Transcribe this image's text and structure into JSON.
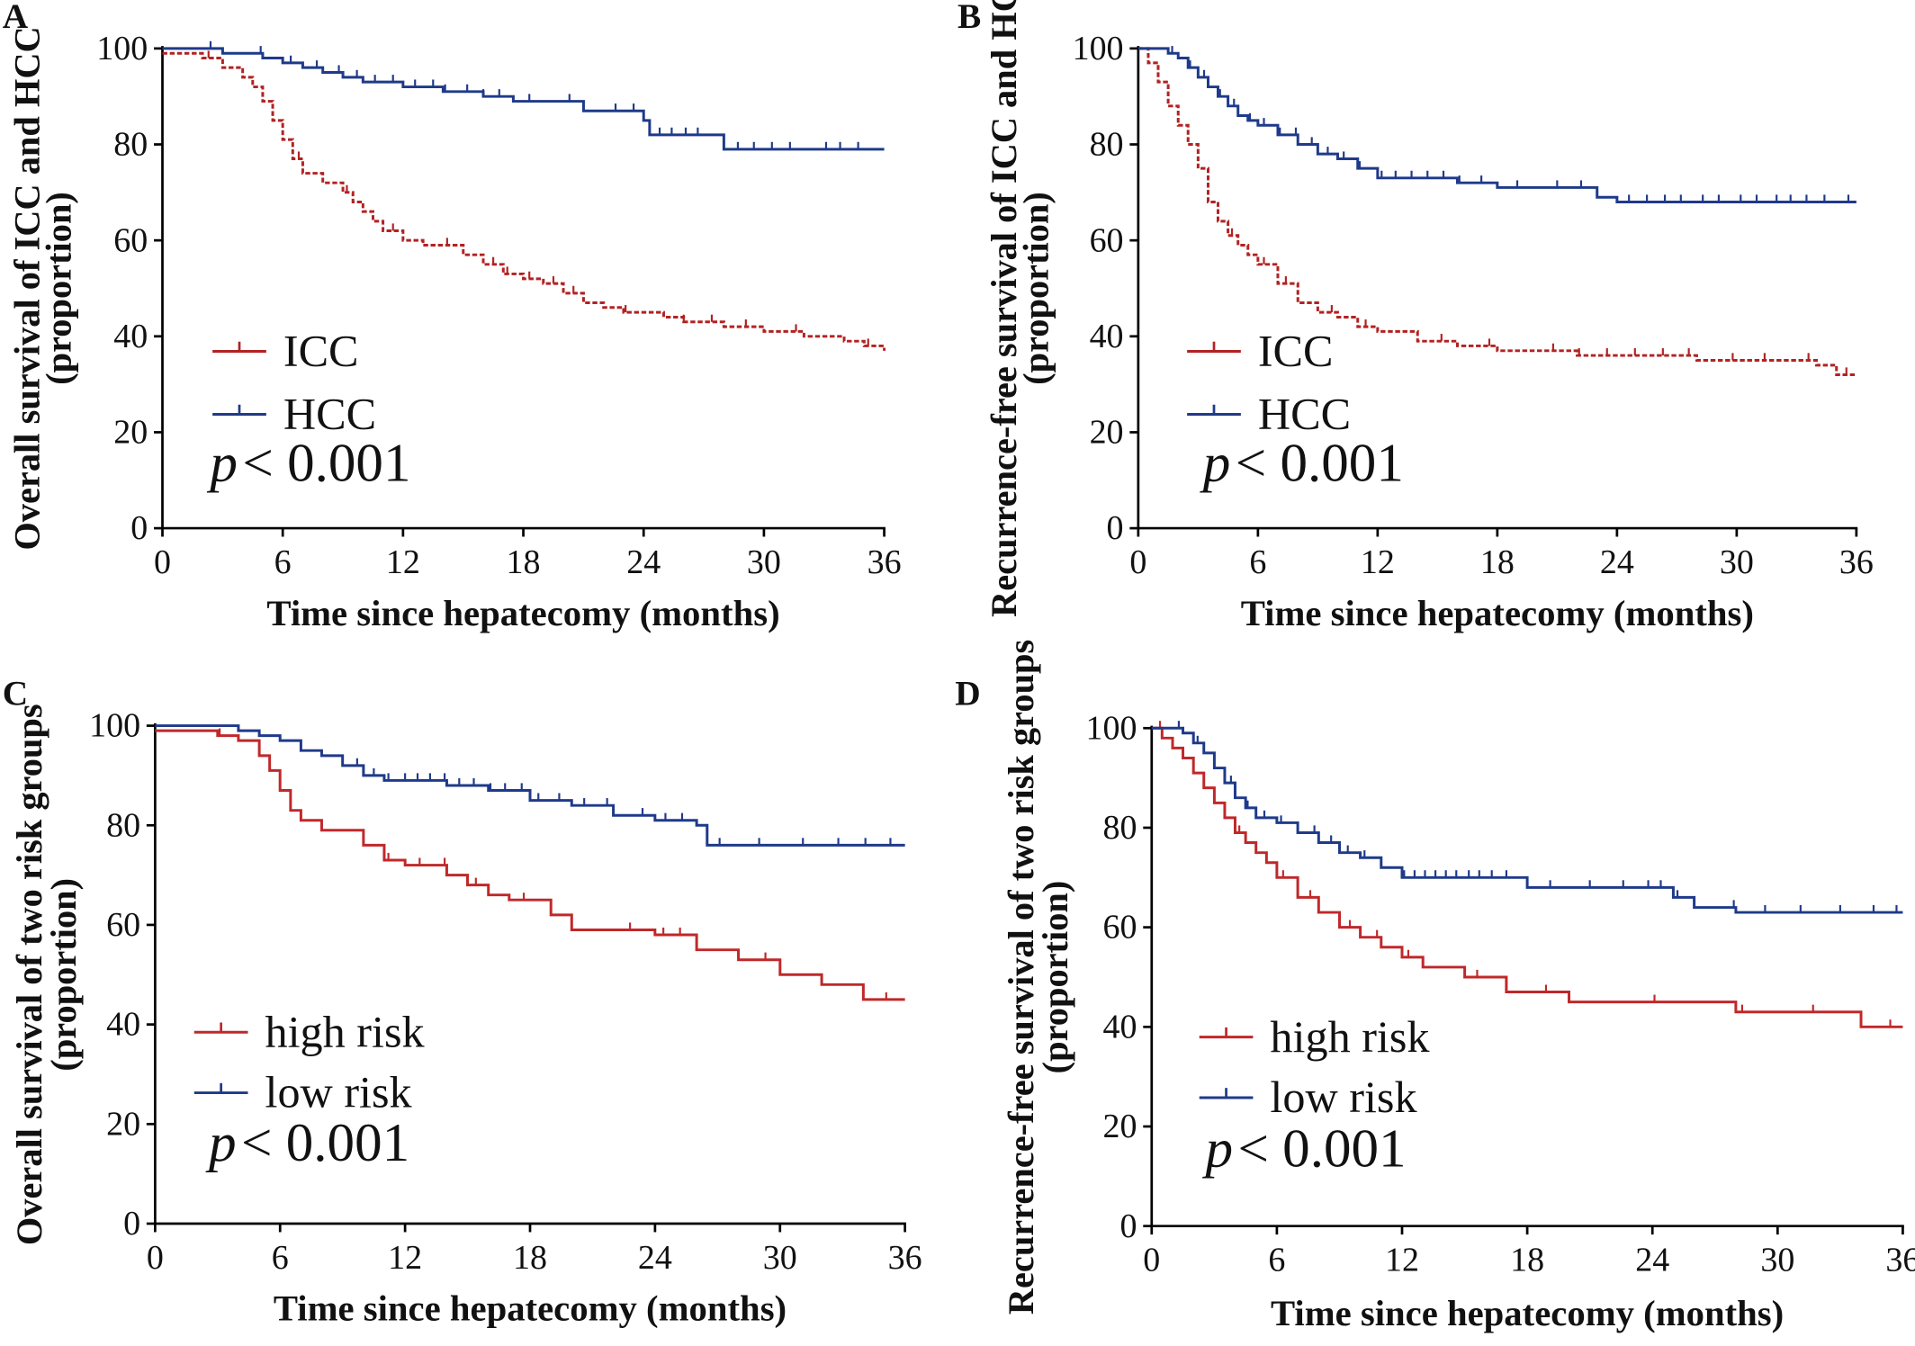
{
  "chart_data": [
    {
      "panel": "A",
      "type": "line",
      "style": "kaplan-meier step curves with censor ticks",
      "xlabel": "Time since hepatecomy (months)",
      "ylabel": "Overall survival of ICC and HCC",
      "ylabel2": "(proportion)",
      "xticks": [
        0,
        6,
        12,
        18,
        24,
        30,
        36
      ],
      "yticks": [
        0,
        20,
        40,
        60,
        80,
        100
      ],
      "xlim": [
        0,
        36
      ],
      "ylim": [
        0,
        100
      ],
      "grid": false,
      "legend_position": "lower-left",
      "annotation": {
        "p": "p",
        "rest": "< 0.001"
      },
      "series": [
        {
          "name": "ICC",
          "color": "#b22222",
          "dash": "dashed",
          "x": [
            0,
            2,
            3,
            4,
            4.5,
            5,
            5.5,
            6,
            6.5,
            7,
            8,
            9,
            9.5,
            10,
            10.5,
            11,
            12,
            13,
            14,
            15,
            16,
            17,
            18,
            19,
            20,
            21,
            22,
            23,
            25,
            26,
            28,
            30,
            32,
            34,
            35,
            36
          ],
          "y": [
            99,
            98,
            96,
            94,
            92,
            89,
            85,
            81,
            77,
            74,
            72,
            70,
            68,
            66,
            64,
            62,
            60,
            59,
            59,
            57,
            55,
            53,
            52,
            51,
            49,
            47,
            46,
            45,
            44,
            43,
            42,
            41,
            40,
            39,
            38,
            37
          ],
          "censors": [
            2.3,
            6.8,
            9.2,
            11.5,
            14.2,
            16.5,
            17.2,
            18.3,
            19.5,
            20.5,
            23.1,
            26.0,
            27.4,
            29.1,
            31.6,
            35.2
          ]
        },
        {
          "name": "HCC",
          "color": "#1f3a8a",
          "dash": "solid",
          "x": [
            0,
            3,
            5,
            6,
            7,
            8,
            9,
            10,
            12,
            14,
            16,
            17.5,
            21,
            24,
            24.3,
            28,
            36
          ],
          "y": [
            100,
            99,
            98,
            97,
            96,
            95,
            94,
            93,
            92,
            91,
            90,
            89,
            87,
            85,
            82,
            79,
            79
          ],
          "censors": [
            2.4,
            4.9,
            6.4,
            7.7,
            8.8,
            9.7,
            10.6,
            11.5,
            12.6,
            13.5,
            14.1,
            15.2,
            16.0,
            16.8,
            18.3,
            20.3,
            22.6,
            23.5,
            24.8,
            25.4,
            26.1,
            26.7,
            28.7,
            29.5,
            30.4,
            31.3,
            33.1,
            33.8,
            34.7
          ]
        }
      ]
    },
    {
      "panel": "B",
      "type": "line",
      "style": "kaplan-meier step curves with censor ticks",
      "xlabel": "Time since hepatecomy (months)",
      "ylabel": "Recurrence-free survival of  ICC and HCC",
      "ylabel2": "(proportion)",
      "xticks": [
        0,
        6,
        12,
        18,
        24,
        30,
        36
      ],
      "yticks": [
        0,
        20,
        40,
        60,
        80,
        100
      ],
      "xlim": [
        0,
        36
      ],
      "ylim": [
        0,
        100
      ],
      "grid": false,
      "legend_position": "lower-left",
      "annotation": {
        "p": "p",
        "rest": "< 0.001"
      },
      "series": [
        {
          "name": "ICC",
          "color": "#b22222",
          "dash": "dashed",
          "x": [
            0,
            0.5,
            1,
            1.5,
            2,
            2.5,
            3,
            3.5,
            4,
            4.5,
            5,
            5.5,
            6,
            7,
            8,
            9,
            10,
            11,
            12,
            14,
            16,
            18,
            22,
            28,
            34,
            35,
            36
          ],
          "y": [
            100,
            97,
            93,
            88,
            84,
            80,
            75,
            68,
            64,
            61,
            59,
            57,
            55,
            51,
            47,
            45,
            44,
            42,
            41,
            39,
            38,
            37,
            36,
            35,
            34,
            32,
            32
          ],
          "censors": [
            4.7,
            6.3,
            7.4,
            9.7,
            11.4,
            15.2,
            17.6,
            20.8,
            22.1,
            23.5,
            24.9,
            26.3,
            27.6,
            29.8,
            31.4,
            33.6,
            35.5
          ]
        },
        {
          "name": "HCC",
          "color": "#1f3a8a",
          "dash": "solid",
          "x": [
            0,
            1,
            1.5,
            2,
            2.5,
            3,
            3.5,
            4,
            4.5,
            5,
            5.5,
            6,
            7,
            8,
            9,
            10,
            11,
            12,
            16,
            18,
            23,
            24,
            36
          ],
          "y": [
            100,
            100,
            99,
            98,
            96,
            94,
            92,
            90,
            88,
            86,
            85,
            84,
            82,
            80,
            78,
            77,
            75,
            73,
            72,
            71,
            69,
            68,
            68
          ],
          "censors": [
            1.7,
            2.6,
            3.3,
            4.1,
            4.8,
            5.6,
            6.3,
            7.1,
            7.9,
            8.7,
            9.5,
            10.3,
            11.1,
            12.2,
            12.9,
            13.7,
            14.5,
            15.3,
            16.1,
            17.2,
            19.0,
            21.0,
            22.2,
            24.6,
            25.5,
            26.4,
            27.2,
            28.3,
            29.1,
            30.2,
            31.0,
            32.0,
            32.7,
            33.5,
            34.4,
            35.6
          ]
        }
      ]
    },
    {
      "panel": "C",
      "type": "line",
      "style": "kaplan-meier step curves with censor ticks",
      "xlabel": "Time since hepatecomy (months)",
      "ylabel": "Overall survival of  two risk groups",
      "ylabel2": "(proportion)",
      "xticks": [
        0,
        6,
        12,
        18,
        24,
        30,
        36
      ],
      "yticks": [
        0,
        20,
        40,
        60,
        80,
        100
      ],
      "xlim": [
        0,
        36
      ],
      "ylim": [
        0,
        100
      ],
      "grid": false,
      "legend_position": "lower-left",
      "annotation": {
        "p": "p",
        "rest": "< 0.001"
      },
      "series": [
        {
          "name": "high risk",
          "color": "#c0282a",
          "dash": "solid",
          "x": [
            0,
            3,
            4,
            5,
            5.5,
            6,
            6.5,
            7,
            8,
            10,
            11,
            12,
            14,
            15,
            16,
            17,
            19,
            20,
            24,
            26,
            28,
            30,
            32,
            34,
            36
          ],
          "y": [
            99,
            98,
            97,
            94,
            91,
            87,
            83,
            81,
            79,
            76,
            73,
            72,
            70,
            68,
            66,
            65,
            62,
            59,
            58,
            55,
            53,
            50,
            48,
            45,
            45
          ],
          "censors": [
            3.1,
            11.2,
            12.7,
            13.9,
            15.4,
            17.7,
            22.8,
            24.4,
            25.2,
            29.3,
            35.1
          ]
        },
        {
          "name": "low risk",
          "color": "#1f3a8a",
          "dash": "solid",
          "x": [
            0,
            3,
            4,
            5,
            6,
            7,
            8,
            9,
            10,
            11,
            12,
            14,
            16,
            18,
            20,
            22,
            24,
            26,
            26.5,
            36
          ],
          "y": [
            100,
            100,
            99,
            98,
            97,
            95,
            94,
            92,
            90,
            89,
            89,
            88,
            87,
            85,
            84,
            82,
            81,
            80,
            76,
            76
          ],
          "censors": [
            9.7,
            10.5,
            11.2,
            12.0,
            12.6,
            13.2,
            13.9,
            14.6,
            15.3,
            16.1,
            16.8,
            17.6,
            18.4,
            19.4,
            20.6,
            21.7,
            23.4,
            24.5,
            25.3,
            27.1,
            29.0,
            31.1,
            32.8,
            34.1,
            35.3
          ]
        }
      ]
    },
    {
      "panel": "D",
      "type": "line",
      "style": "kaplan-meier step curves with censor ticks",
      "xlabel": "Time since hepatecomy (months)",
      "ylabel": "Recurrence-free survival of  two risk groups",
      "ylabel2": "(proportion)",
      "xticks": [
        0,
        6,
        12,
        18,
        24,
        30,
        36
      ],
      "yticks": [
        0,
        20,
        40,
        60,
        80,
        100
      ],
      "xlim": [
        0,
        36
      ],
      "ylim": [
        0,
        100
      ],
      "grid": false,
      "legend_position": "lower-left",
      "annotation": {
        "p": "p",
        "rest": "< 0.001"
      },
      "series": [
        {
          "name": "high risk",
          "color": "#c0282a",
          "dash": "solid",
          "x": [
            0,
            0.5,
            1,
            1.5,
            2,
            2.5,
            3,
            3.5,
            4,
            4.5,
            5,
            5.5,
            6,
            7,
            8,
            9,
            10,
            11,
            12,
            13,
            15,
            17,
            20,
            28,
            34,
            36
          ],
          "y": [
            100,
            98,
            96,
            94,
            91,
            88,
            85,
            82,
            79,
            77,
            75,
            73,
            70,
            66,
            63,
            60,
            58,
            56,
            54,
            52,
            50,
            47,
            45,
            43,
            40,
            40
          ],
          "censors": [
            0.4,
            4.2,
            6.3,
            7.6,
            9.5,
            10.8,
            12.3,
            15.6,
            18.9,
            24.1,
            28.3,
            31.7,
            35.4
          ]
        },
        {
          "name": "low risk",
          "color": "#1f3a8a",
          "dash": "solid",
          "x": [
            0,
            1,
            1.5,
            2,
            2.5,
            3,
            3.5,
            4,
            4.5,
            5,
            6,
            7,
            8,
            9,
            10,
            11,
            12,
            18,
            25,
            26,
            28,
            36
          ],
          "y": [
            100,
            100,
            99,
            97,
            95,
            92,
            89,
            86,
            84,
            82,
            81,
            79,
            77,
            75,
            74,
            72,
            70,
            68,
            66,
            64,
            63,
            63
          ],
          "censors": [
            1.3,
            2.2,
            3.0,
            3.8,
            4.6,
            5.4,
            6.2,
            7.0,
            7.8,
            8.6,
            9.4,
            10.2,
            11.0,
            12.1,
            12.6,
            13.1,
            13.6,
            14.1,
            14.6,
            15.2,
            15.7,
            16.3,
            17.0,
            19.1,
            21.0,
            22.6,
            23.8,
            24.4,
            25.2,
            26.0,
            27.9,
            29.4,
            31.1,
            33.0,
            34.6,
            35.7
          ]
        }
      ]
    }
  ]
}
